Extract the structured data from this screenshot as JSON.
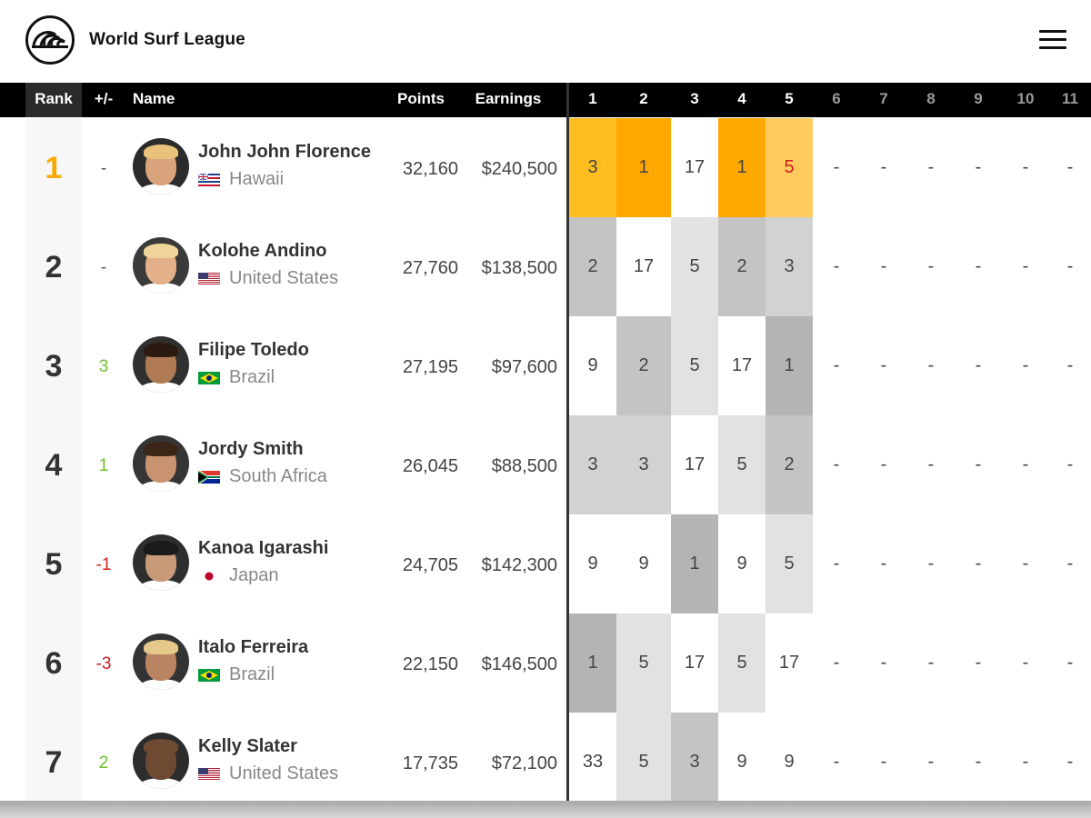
{
  "header": {
    "brand": "World Surf League",
    "logo_icon": "wsl-wave-logo-icon",
    "menu_icon": "hamburger-menu-icon"
  },
  "table": {
    "columns": {
      "rank": "Rank",
      "change": "+/-",
      "name": "Name",
      "points": "Points",
      "earnings": "Earnings",
      "events": [
        "1",
        "2",
        "3",
        "4",
        "5",
        "6",
        "7",
        "8",
        "9",
        "10",
        "11"
      ],
      "completed_events": 5
    },
    "colors": {
      "leader_rank": "#f8a900",
      "change_up": "#6bbf2a",
      "change_down": "#cc1f1f",
      "event_win_leader": "#ffa800",
      "event_top_leader": "#ffbd1f",
      "event_leader_light": "#ffcb5c"
    },
    "rows": [
      {
        "rank": "1",
        "change": "-",
        "change_dir": "none",
        "name": "John John Florence",
        "country": "Hawaii",
        "flag": "hawaii-flag-icon",
        "points": "32,160",
        "earnings": "$240,500",
        "events": [
          "3",
          "1",
          "17",
          "1",
          "5",
          "-",
          "-",
          "-",
          "-",
          "-",
          "-"
        ],
        "event_colors": [
          "#ffbd1f",
          "#ffa800",
          "#ffffff",
          "#ffa800",
          "#ffcb5c"
        ],
        "event_text_colors": [
          "#444",
          "#444",
          "#444",
          "#444",
          "#cc1f1f"
        ]
      },
      {
        "rank": "2",
        "change": "-",
        "change_dir": "none",
        "name": "Kolohe Andino",
        "country": "United States",
        "flag": "usa-flag-icon",
        "points": "27,760",
        "earnings": "$138,500",
        "events": [
          "2",
          "17",
          "5",
          "2",
          "3",
          "-",
          "-",
          "-",
          "-",
          "-",
          "-"
        ],
        "event_colors": [
          "#c4c4c4",
          "#ffffff",
          "#e2e2e2",
          "#c4c4c4",
          "#d2d2d2"
        ],
        "event_text_colors": [
          "#444",
          "#444",
          "#444",
          "#444",
          "#444"
        ]
      },
      {
        "rank": "3",
        "change": "3",
        "change_dir": "up",
        "name": "Filipe Toledo",
        "country": "Brazil",
        "flag": "brazil-flag-icon",
        "points": "27,195",
        "earnings": "$97,600",
        "events": [
          "9",
          "2",
          "5",
          "17",
          "1"
        ],
        "event_colors": [
          "#ffffff",
          "#c4c4c4",
          "#e2e2e2",
          "#ffffff",
          "#b4b4b4"
        ],
        "event_text_colors": [
          "#444",
          "#444",
          "#444",
          "#444",
          "#444"
        ]
      },
      {
        "rank": "4",
        "change": "1",
        "change_dir": "up",
        "name": "Jordy Smith",
        "country": "South Africa",
        "flag": "south-africa-flag-icon",
        "points": "26,045",
        "earnings": "$88,500",
        "events": [
          "3",
          "3",
          "17",
          "5",
          "2"
        ],
        "event_colors": [
          "#d2d2d2",
          "#d2d2d2",
          "#ffffff",
          "#e2e2e2",
          "#c4c4c4"
        ],
        "event_text_colors": [
          "#444",
          "#444",
          "#444",
          "#444",
          "#444"
        ]
      },
      {
        "rank": "5",
        "change": "-1",
        "change_dir": "down",
        "name": "Kanoa Igarashi",
        "country": "Japan",
        "flag": "japan-flag-icon",
        "points": "24,705",
        "earnings": "$142,300",
        "events": [
          "9",
          "9",
          "1",
          "9",
          "5"
        ],
        "event_colors": [
          "#ffffff",
          "#ffffff",
          "#b4b4b4",
          "#ffffff",
          "#e2e2e2"
        ],
        "event_text_colors": [
          "#444",
          "#444",
          "#444",
          "#444",
          "#444"
        ]
      },
      {
        "rank": "6",
        "change": "-3",
        "change_dir": "down",
        "name": "Italo Ferreira",
        "country": "Brazil",
        "flag": "brazil-flag-icon",
        "points": "22,150",
        "earnings": "$146,500",
        "events": [
          "1",
          "5",
          "17",
          "5",
          "17"
        ],
        "event_colors": [
          "#b4b4b4",
          "#e2e2e2",
          "#ffffff",
          "#e2e2e2",
          "#ffffff"
        ],
        "event_text_colors": [
          "#444",
          "#444",
          "#444",
          "#444",
          "#444"
        ]
      },
      {
        "rank": "7",
        "change": "2",
        "change_dir": "up",
        "name": "Kelly Slater",
        "country": "United States",
        "flag": "usa-flag-icon",
        "points": "17,735",
        "earnings": "$72,100",
        "events": [
          "33",
          "5",
          "3",
          "9",
          "9"
        ],
        "event_colors": [
          "#ffffff",
          "#e2e2e2",
          "#c4c4c4",
          "#ffffff",
          "#ffffff"
        ],
        "event_text_colors": [
          "#444",
          "#444",
          "#444",
          "#444",
          "#444"
        ]
      }
    ],
    "empty_event": "-"
  }
}
